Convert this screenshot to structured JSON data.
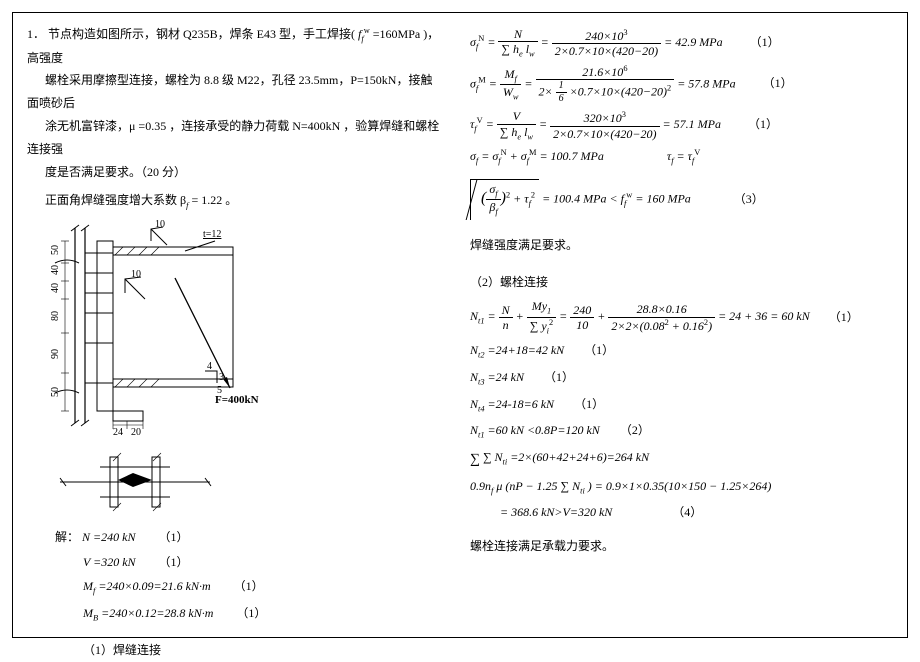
{
  "problem": {
    "num": "1．",
    "text_l1": "节点构造如图所示，钢材 Q235B，焊条 E43 型，手工焊接(",
    "fw_label": "f",
    "fw_sup": "w",
    "fw_sub": "f",
    "fw_val": " =160MPa )，高强度",
    "text_l2": "螺栓采用摩擦型连接，螺栓为 8.8 级 M22，孔径 23.5mm，P=150kN，接触面喷砂后",
    "text_l3": "涂无机富锌漆，μ =0.35 ，连接承受的静力荷载 N=400kN ，验算焊缝和螺栓连接强",
    "text_l4": "度是否满足要求。（20 分）",
    "text_l5": "正面角焊缝强度增大系数 β",
    "beta_sub": "f",
    "beta_val": " = 1.22 。"
  },
  "solution": {
    "label": "解：",
    "N": "N =240 kN",
    "V": "V =320 kN",
    "Mf": "M",
    "Mf_sub": "f",
    "Mf_val": " =240×0.09=21.6 kN·m",
    "MB": "M",
    "MB_sub": "B",
    "MB_val": " =240×0.12=28.8 kN·m",
    "pt1": "（1）",
    "sec1": "（1）焊缝连接"
  },
  "right": {
    "eq1_lhs_sym": "σ",
    "eq1_lhs_sup": "N",
    "eq1_lhs_sub": "f",
    "eq1_f1_num": "N",
    "eq1_f1_den": "∑ h<sub>e</sub> l<sub>w</sub>",
    "eq1_f2_num": "240×10",
    "eq1_f2_num_sup": "3",
    "eq1_f2_den": "2×0.7×10×(420−20)",
    "eq1_val": "= 42.9 MPa",
    "eq2_lhs_sup": "M",
    "eq2_f1_num": "M<sub>f</sub>",
    "eq2_f1_den": "W<sub>w</sub>",
    "eq2_f2_num": "21.6×10",
    "eq2_f2_num_sup": "6",
    "eq2_f2_den_a": "2×",
    "eq2_f2_den_frac_num": "1",
    "eq2_f2_den_frac_den": "6",
    "eq2_f2_den_b": "×0.7×10×(420−20)",
    "eq2_f2_den_sup": "2",
    "eq2_val": "= 57.8 MPa",
    "eq3_lhs": "τ",
    "eq3_lhs_sup": "V",
    "eq3_lhs_sub": "f",
    "eq3_f1_num": "V",
    "eq3_f1_den": "∑ h<sub>e</sub> l<sub>w</sub>",
    "eq3_f2_num": "320×10",
    "eq3_f2_num_sup": "3",
    "eq3_f2_den": "2×0.7×10×(420−20)",
    "eq3_val": "= 57.1 MPa",
    "eq4_a": "σ",
    "eq4_sub": "f",
    "eq4_mid": " = σ",
    "eq4_mid2": " + σ",
    "eq4_val": " = 100.7 MPa",
    "eq4_b": "τ",
    "eq4_b_val": " = τ",
    "eq5_inner_num": "σ<sub>f</sub>",
    "eq5_inner_den": "β<sub>f</sub>",
    "eq5_plus": " + τ",
    "eq5_val": "= 100.4 MPa < ",
    "eq5_fw": "f",
    "eq5_fw_val": " = 160 MPa",
    "eq5_pt": "（3）",
    "conc1": "焊缝强度满足要求。",
    "sec2": "（2）螺栓连接",
    "b1_lhs": "N",
    "b1_lhs_sub": "t1",
    "b1_f1_num": "N",
    "b1_f1_den": "n",
    "b1_f2_num": "My<sub>1</sub>",
    "b1_f2_den": "∑ y<sub>i</sub><sup>2</sup>",
    "b1_f3_num": "240",
    "b1_f3_den": "10",
    "b1_f4_num": "28.8×0.16",
    "b1_f4_den": "2×2×(0.08<sup>2</sup> + 0.16<sup>2</sup>)",
    "b1_val": "= 24 + 36 = 60 kN",
    "b2": "N",
    "b2_sub": "t2",
    "b2_val": " =24+18=42 kN",
    "b3": "N",
    "b3_sub": "t3",
    "b3_val": " =24 kN",
    "b4": "N",
    "b4_sub": "t4",
    "b4_val": " =24-18=6 kN",
    "b5": "N",
    "b5_sub": "t1",
    "b5_val": " =60 kN <0.8P=120 kN",
    "b5_pt": "（2）",
    "b6": "∑ N",
    "b6_sub": "ti",
    "b6_val": " =2×(60+42+24+6)=264 kN",
    "b7": "0.9n<sub>f</sub> μ (nP − 1.25 ∑ N<sub>ti</sub> ) = 0.9×1×0.35(10×150 − 1.25×264)",
    "b7b": "= 368.6 kN>V=320 kN",
    "b7_pt": "（4）",
    "conc2": "螺栓连接满足承载力要求。"
  },
  "fig": {
    "F_label": "F=400kN",
    "t_label": "t=12",
    "dims_v": [
      "50",
      "40",
      "40",
      "80",
      "90",
      "50"
    ],
    "dims_h": [
      "24",
      "20"
    ],
    "top10": "10",
    "mid10": "10",
    "a45_4": "4",
    "a45_5": "5",
    "a45_3": "3"
  }
}
